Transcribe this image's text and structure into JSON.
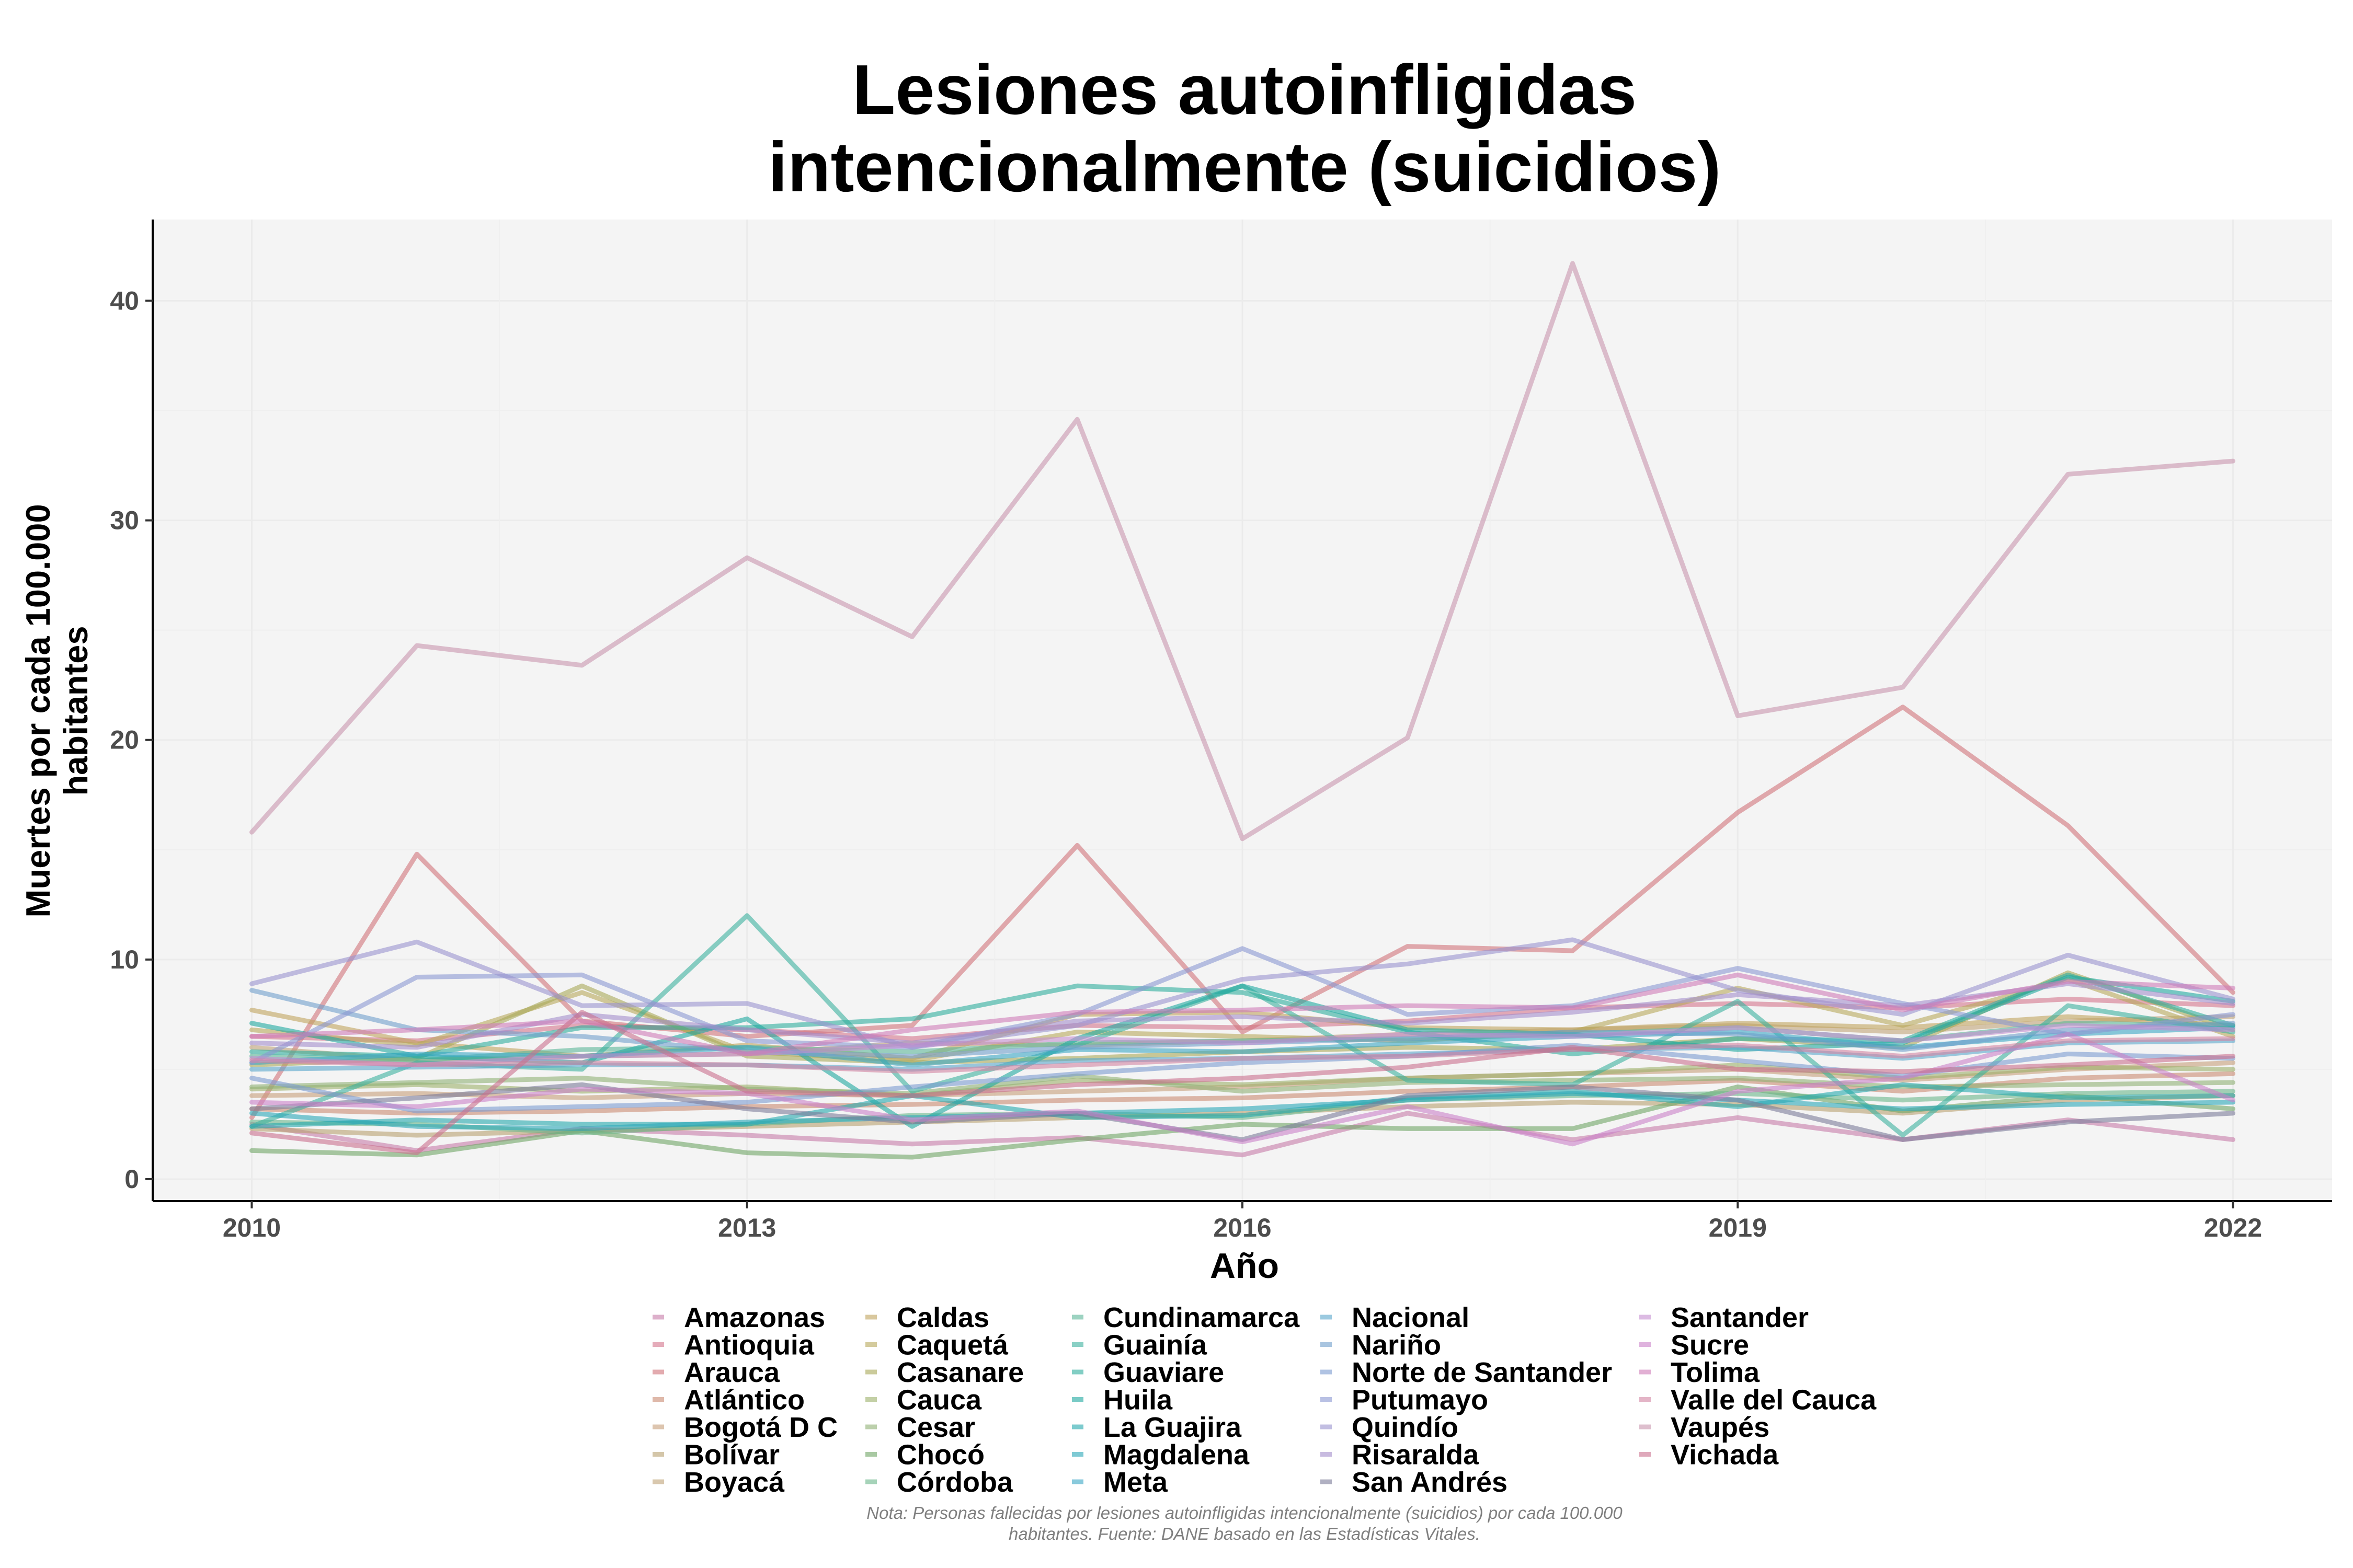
{
  "chart_data": {
    "type": "line",
    "title": [
      "Lesiones autoinfligidas",
      "intencionalmente (suicidios)"
    ],
    "xlabel": "Año",
    "ylabel": [
      "Muertes por cada 100.000",
      "habitantes"
    ],
    "x_ticks": [
      2010,
      2013,
      2016,
      2019,
      2022
    ],
    "y_ticks": [
      0,
      10,
      20,
      30,
      40
    ],
    "xlim": [
      2009.4,
      2022.6
    ],
    "ylim": [
      -1,
      43.7
    ],
    "note": [
      "Nota: Personas fallecidas por lesiones autoinfligidas intencionalmente (suicidios) por cada 100.000",
      "habitantes. Fuente: DANE basado en las Estadísticas Vitales."
    ],
    "x": [
      2010,
      2011,
      2012,
      2013,
      2014,
      2015,
      2016,
      2017,
      2018,
      2019,
      2020,
      2021,
      2022
    ],
    "series": [
      {
        "name": "Amazonas",
        "color": "#C77CA8",
        "values": [
          2.5,
          1.3,
          2.3,
          2.0,
          1.6,
          1.9,
          1.1,
          3.0,
          1.8,
          2.8,
          1.8,
          2.7,
          1.8
        ]
      },
      {
        "name": "Antioquia",
        "color": "#D4748C",
        "values": [
          6.5,
          6.3,
          7.0,
          6.8,
          6.4,
          7.0,
          6.9,
          7.2,
          7.8,
          8.0,
          7.8,
          8.2,
          7.9
        ]
      },
      {
        "name": "Arauca",
        "color": "#D0737A",
        "values": [
          2.8,
          14.8,
          7.2,
          6.5,
          7.0,
          15.2,
          6.7,
          10.6,
          10.4,
          16.7,
          21.5,
          16.1,
          8.5
        ]
      },
      {
        "name": "Atlántico",
        "color": "#C98A72",
        "values": [
          3.2,
          3.0,
          3.1,
          3.3,
          3.4,
          3.6,
          3.7,
          4.0,
          4.2,
          4.5,
          4.0,
          4.6,
          4.8
        ]
      },
      {
        "name": "Bogotá D C",
        "color": "#C69E7A",
        "values": [
          3.8,
          3.9,
          3.7,
          3.9,
          3.8,
          4.0,
          4.2,
          4.6,
          4.8,
          5.0,
          4.5,
          5.0,
          5.3
        ]
      },
      {
        "name": "Bolívar",
        "color": "#B8A070",
        "values": [
          2.3,
          2.0,
          2.2,
          2.4,
          2.6,
          2.8,
          3.0,
          3.3,
          3.5,
          3.4,
          3.0,
          3.6,
          3.8
        ]
      },
      {
        "name": "Boyacá",
        "color": "#C0A378",
        "values": [
          6.0,
          5.4,
          5.6,
          5.7,
          6.2,
          6.1,
          6.3,
          6.6,
          6.8,
          7.0,
          6.7,
          7.2,
          7.4
        ]
      },
      {
        "name": "Caldas",
        "color": "#BFA35E",
        "values": [
          7.7,
          6.2,
          5.6,
          6.1,
          5.5,
          7.5,
          7.6,
          6.9,
          6.8,
          7.1,
          6.9,
          7.4,
          7.0
        ]
      },
      {
        "name": "Caquetá",
        "color": "#B8A85C",
        "values": [
          6.8,
          6.1,
          8.5,
          5.8,
          5.4,
          6.7,
          6.5,
          6.3,
          6.7,
          8.7,
          7.0,
          9.1,
          6.5
        ]
      },
      {
        "name": "Casanare",
        "color": "#A8A858",
        "values": [
          5.2,
          5.5,
          8.8,
          5.6,
          5.3,
          5.5,
          5.8,
          6.0,
          5.9,
          6.4,
          6.0,
          9.4,
          6.8
        ]
      },
      {
        "name": "Cauca",
        "color": "#9CB16A",
        "values": [
          4.1,
          4.3,
          4.0,
          4.2,
          3.8,
          4.5,
          4.3,
          4.6,
          4.8,
          5.2,
          4.6,
          5.1,
          5.0
        ]
      },
      {
        "name": "Cesar",
        "color": "#8FB074",
        "values": [
          4.2,
          4.4,
          4.6,
          4.1,
          3.9,
          4.7,
          4.0,
          4.4,
          4.5,
          4.6,
          4.2,
          4.3,
          4.4
        ]
      },
      {
        "name": "Chocó",
        "color": "#6FA565",
        "values": [
          1.3,
          1.1,
          2.2,
          1.2,
          1.0,
          1.8,
          2.5,
          2.3,
          2.3,
          4.2,
          3.1,
          3.8,
          3.2
        ]
      },
      {
        "name": "Córdoba",
        "color": "#6BB58A",
        "values": [
          2.6,
          2.5,
          2.1,
          2.5,
          2.9,
          3.0,
          2.8,
          3.6,
          3.8,
          3.9,
          3.6,
          3.9,
          4.0
        ]
      },
      {
        "name": "Cundinamarca",
        "color": "#5BB597",
        "values": [
          5.6,
          5.4,
          5.9,
          6.0,
          5.8,
          6.2,
          6.3,
          6.4,
          6.6,
          6.9,
          6.3,
          7.1,
          7.0
        ]
      },
      {
        "name": "Guainía",
        "color": "#3CB19E",
        "values": [
          2.4,
          5.3,
          5.0,
          12.0,
          4.0,
          6.1,
          8.8,
          4.5,
          4.3,
          8.1,
          2.0,
          7.9,
          6.7
        ]
      },
      {
        "name": "Guaviare",
        "color": "#2FAE9C",
        "values": [
          5.8,
          5.6,
          6.9,
          6.9,
          7.3,
          8.8,
          8.5,
          6.7,
          5.7,
          6.4,
          6.3,
          9.3,
          7.0
        ]
      },
      {
        "name": "Huila",
        "color": "#1FA9A0",
        "values": [
          7.1,
          5.6,
          5.3,
          7.3,
          2.4,
          6.4,
          8.8,
          6.8,
          6.6,
          5.9,
          6.2,
          9.2,
          8.1
        ]
      },
      {
        "name": "La Guajira",
        "color": "#24A8AE",
        "values": [
          2.4,
          2.7,
          2.5,
          2.5,
          3.8,
          2.8,
          2.9,
          3.7,
          4.0,
          3.3,
          4.3,
          3.7,
          3.8
        ]
      },
      {
        "name": "Magdalena",
        "color": "#2AA6B8",
        "values": [
          3.0,
          2.4,
          2.3,
          2.6,
          2.8,
          3.0,
          3.2,
          3.6,
          3.9,
          3.6,
          3.2,
          3.4,
          3.5
        ]
      },
      {
        "name": "Meta",
        "color": "#3AA7C4",
        "values": [
          5.3,
          5.7,
          5.6,
          6.0,
          5.2,
          5.9,
          5.8,
          6.2,
          6.5,
          6.7,
          6.0,
          6.6,
          6.9
        ]
      },
      {
        "name": "Nacional",
        "color": "#5AA6CC",
        "values": [
          5.0,
          5.1,
          5.2,
          5.2,
          5.0,
          5.4,
          5.5,
          5.7,
          5.9,
          6.0,
          5.5,
          6.2,
          6.3
        ]
      },
      {
        "name": "Nariño",
        "color": "#6F9FCB",
        "values": [
          8.6,
          6.8,
          6.5,
          5.8,
          5.6,
          6.0,
          6.2,
          6.4,
          6.7,
          6.6,
          5.9,
          6.8,
          7.1
        ]
      },
      {
        "name": "Norte de Santander",
        "color": "#7C9BD0",
        "values": [
          4.6,
          3.1,
          3.3,
          3.5,
          4.2,
          4.8,
          5.3,
          5.6,
          6.1,
          5.4,
          4.7,
          5.7,
          5.5
        ]
      },
      {
        "name": "Putumayo",
        "color": "#8A97D2",
        "values": [
          5.3,
          9.2,
          9.3,
          6.3,
          6.0,
          7.5,
          10.5,
          7.5,
          7.9,
          9.6,
          8.0,
          6.6,
          7.5
        ]
      },
      {
        "name": "Quindío",
        "color": "#9A93CF",
        "values": [
          8.9,
          10.8,
          7.9,
          8.0,
          6.0,
          7.0,
          9.1,
          9.8,
          10.9,
          8.6,
          7.5,
          10.2,
          8.2
        ]
      },
      {
        "name": "Risaralda",
        "color": "#A48ECB",
        "values": [
          6.2,
          6.0,
          7.5,
          6.8,
          6.2,
          7.2,
          7.4,
          7.1,
          7.6,
          8.4,
          7.9,
          8.9,
          8.0
        ]
      },
      {
        "name": "San Andrés",
        "color": "#7C7C9A",
        "values": [
          3.2,
          3.7,
          4.3,
          3.2,
          2.6,
          3.0,
          1.8,
          3.8,
          4.2,
          3.6,
          1.8,
          2.6,
          3.0
        ]
      },
      {
        "name": "Santander",
        "color": "#C48ED0",
        "values": [
          5.5,
          5.2,
          5.6,
          5.7,
          6.1,
          6.4,
          6.2,
          6.6,
          6.5,
          6.9,
          6.3,
          7.0,
          6.8
        ]
      },
      {
        "name": "Sucre",
        "color": "#C980C8",
        "values": [
          3.5,
          3.3,
          4.1,
          3.9,
          2.7,
          3.1,
          1.7,
          3.3,
          1.6,
          4.0,
          4.6,
          6.6,
          3.6
        ]
      },
      {
        "name": "Tolima",
        "color": "#CF7CB8",
        "values": [
          6.5,
          6.8,
          7.2,
          5.7,
          6.8,
          7.6,
          7.7,
          7.9,
          7.8,
          9.3,
          7.7,
          9.0,
          8.7
        ]
      },
      {
        "name": "Valle del Cauca",
        "color": "#D284A2",
        "values": [
          5.4,
          5.2,
          5.3,
          5.2,
          4.9,
          5.2,
          5.5,
          5.6,
          5.9,
          6.1,
          5.6,
          6.3,
          6.4
        ]
      },
      {
        "name": "Vaupés",
        "color": "#C895AE",
        "values": [
          15.8,
          24.3,
          23.4,
          28.3,
          24.7,
          34.6,
          15.5,
          20.1,
          41.7,
          21.1,
          22.4,
          32.1,
          32.7
        ]
      },
      {
        "name": "Vichada",
        "color": "#C96F8E",
        "values": [
          2.1,
          1.2,
          7.6,
          4.0,
          3.8,
          4.3,
          4.6,
          5.1,
          6.0,
          5.0,
          4.9,
          5.2,
          5.6
        ]
      }
    ]
  }
}
